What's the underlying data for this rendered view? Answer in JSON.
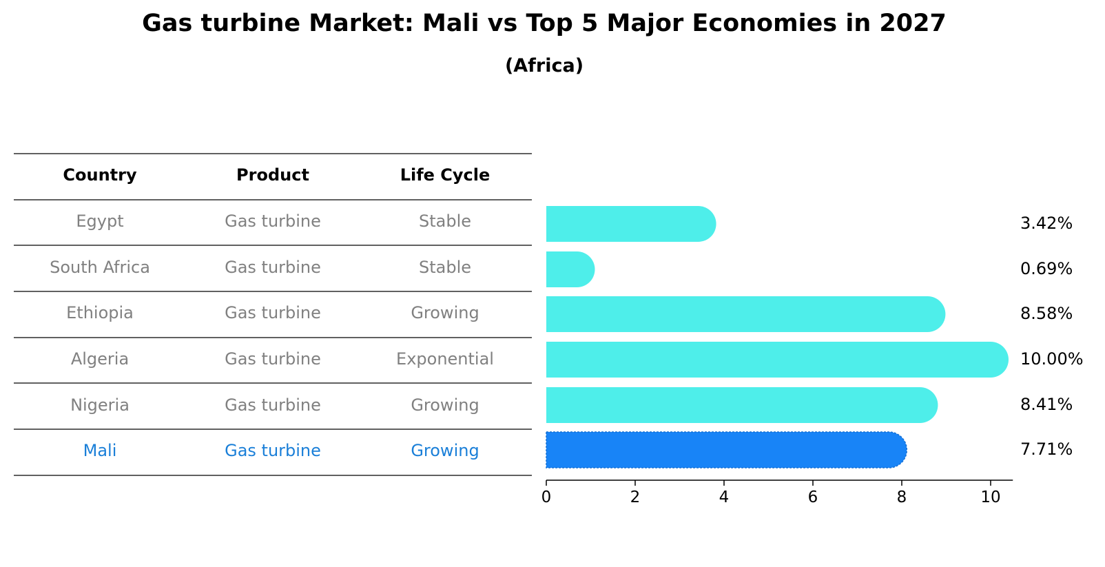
{
  "chart_data": {
    "type": "bar",
    "orientation": "horizontal",
    "title": "Gas turbine Market: Mali vs Top 5 Major Economies in 2027",
    "subtitle": "(Africa)",
    "table": {
      "headers": [
        "Country",
        "Product",
        "Life Cycle"
      ],
      "rows": [
        {
          "country": "Egypt",
          "product": "Gas turbine",
          "life_cycle": "Stable"
        },
        {
          "country": "South Africa",
          "product": "Gas turbine",
          "life_cycle": "Stable"
        },
        {
          "country": "Ethiopia",
          "product": "Gas turbine",
          "life_cycle": "Growing"
        },
        {
          "country": "Algeria",
          "product": "Gas turbine",
          "life_cycle": "Exponential"
        },
        {
          "country": "Nigeria",
          "product": "Gas turbine",
          "life_cycle": "Growing"
        },
        {
          "country": "Mali",
          "product": "Gas turbine",
          "life_cycle": "Growing"
        }
      ]
    },
    "categories": [
      "Egypt",
      "South Africa",
      "Ethiopia",
      "Algeria",
      "Nigeria",
      "Mali"
    ],
    "values": [
      3.42,
      0.69,
      8.58,
      10.0,
      8.41,
      7.71
    ],
    "value_labels": [
      "3.42%",
      "0.69%",
      "8.58%",
      "10.00%",
      "8.41%",
      "7.71%"
    ],
    "highlight": "Mali",
    "xlim": [
      0,
      10.5
    ],
    "xticks": [
      0,
      2,
      4,
      6,
      8,
      10
    ],
    "grid": false,
    "colors": {
      "bar": "#4eeeea",
      "highlight_bar": "#1884f7",
      "row_text": "#808080",
      "highlight_text": "#1a7fd8"
    }
  }
}
